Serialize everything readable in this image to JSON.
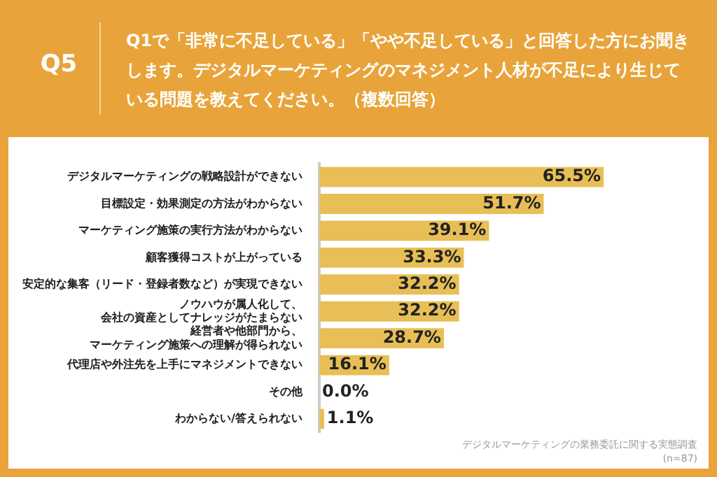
{
  "chart_data": {
    "type": "bar",
    "orientation": "horizontal",
    "title": "Q5",
    "subtitle": "Q1で「非常に不足している」「やや不足している」と回答した方にお聞きします。デジタルマーケティングのマネジメント人材が不足により生じている問題を教えてください。（複数回答）",
    "categories": [
      "デジタルマーケティングの戦略設計ができない",
      "目標設定・効果測定の方法がわからない",
      "マーケティング施策の実行方法がわからない",
      "顧客獲得コストが上がっている",
      "安定的な集客（リード・登録者数など）が実現できない",
      "ノウハウが属人化して、会社の資産としてナレッジがたまらない",
      "経営者や他部門から、マーケティング施策への理解が得られない",
      "代理店や外注先を上手にマネジメントできない",
      "その他",
      "わからない/答えられない"
    ],
    "values": [
      65.5,
      51.7,
      39.1,
      33.3,
      32.2,
      32.2,
      28.7,
      16.1,
      0.0,
      1.1
    ],
    "value_labels": [
      "65.5%",
      "51.7%",
      "39.1%",
      "33.3%",
      "32.2%",
      "32.2%",
      "28.7%",
      "16.1%",
      "0.0%",
      "1.1%"
    ],
    "color": "#e8bf56",
    "legend": false,
    "tick_labels": "y",
    "annotations": [
      "デジタルマーケティングの業務委託に関する実態調査",
      "(n=87)"
    ]
  }
}
